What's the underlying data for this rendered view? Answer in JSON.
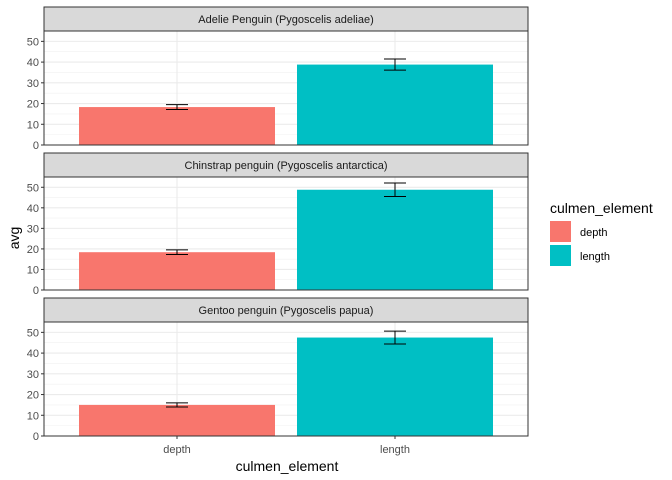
{
  "chart_data": {
    "type": "bar",
    "xlabel": "culmen_element",
    "ylabel": "avg",
    "categories": [
      "depth",
      "length"
    ],
    "ylim": [
      0,
      55
    ],
    "yticks": [
      0,
      10,
      20,
      30,
      40,
      50
    ],
    "grid": true,
    "legend": {
      "title": "culmen_element",
      "position": "right",
      "entries": [
        {
          "label": "depth",
          "color": "#F8766D"
        },
        {
          "label": "length",
          "color": "#00BFC4"
        }
      ]
    },
    "panels": [
      {
        "title": "Adelie Penguin (Pygoscelis adeliae)",
        "values": [
          18.3,
          38.8
        ],
        "errors": [
          1.2,
          2.7
        ]
      },
      {
        "title": "Chinstrap penguin (Pygoscelis antarctica)",
        "values": [
          18.4,
          48.8
        ],
        "errors": [
          1.1,
          3.3
        ]
      },
      {
        "title": "Gentoo penguin (Pygoscelis papua)",
        "values": [
          15.0,
          47.5
        ],
        "errors": [
          1.0,
          3.1
        ]
      }
    ]
  }
}
